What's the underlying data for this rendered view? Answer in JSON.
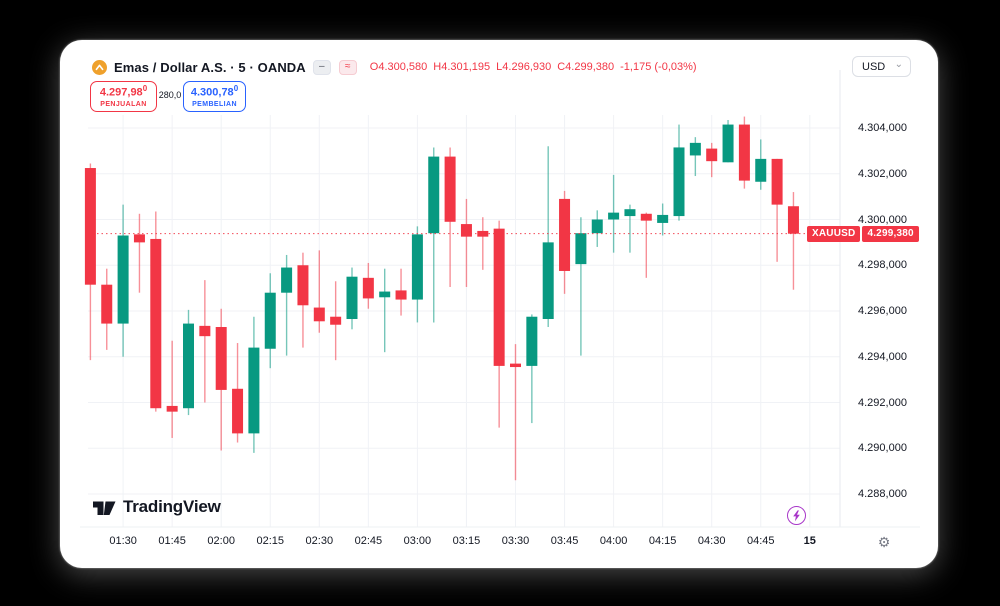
{
  "header": {
    "symbol_title": "Emas / Dollar A.S. · 5 · OANDA",
    "toggles": {
      "collapse": "–",
      "pattern": "≈"
    },
    "ohlc": {
      "o": "O4.300,580",
      "h": "H4.301,195",
      "l": "L4.296,930",
      "c": "C4.299,380",
      "change": "-1,175 (-0,03%)"
    },
    "currency": {
      "selected": "USD",
      "chevron": "⌄"
    }
  },
  "trade_panel": {
    "sell_price": "4.297,98",
    "sell_sup": "0",
    "sell_label": "PENJUALAN",
    "spread": "280,0",
    "buy_price": "4.300,78",
    "buy_sup": "0",
    "buy_label": "PEMBELIAN"
  },
  "price_tag": {
    "symbol": "XAUUSD",
    "value": "4.299,380"
  },
  "footer": {
    "brand": "TradingView"
  },
  "colors": {
    "up": "#089981",
    "down": "#F23645",
    "buy_accent": "#2962FF",
    "alert_accent": "#A837C9",
    "grid": "#f0f2f6",
    "text": "#131722"
  },
  "chart_data": {
    "type": "candlestick",
    "symbol": "XAUUSD",
    "name": "Emas / Dollar A.S.",
    "exchange": "OANDA",
    "interval_minutes": 5,
    "last_price": 4299.38,
    "ylim": [
      4287.0,
      4304.8
    ],
    "grid": true,
    "up_color": "#089981",
    "down_color": "#F23645",
    "price_axis_ticks": [
      {
        "label": "4.304,000",
        "value": 4304
      },
      {
        "label": "4.302,000",
        "value": 4302
      },
      {
        "label": "4.300,000",
        "value": 4300
      },
      {
        "label": "4.298,000",
        "value": 4298
      },
      {
        "label": "4.296,000",
        "value": 4296
      },
      {
        "label": "4.294,000",
        "value": 4294
      },
      {
        "label": "4.292,000",
        "value": 4292
      },
      {
        "label": "4.290,000",
        "value": 4290
      },
      {
        "label": "4.288,000",
        "value": 4288
      }
    ],
    "time_ticks": [
      {
        "label": "01:30"
      },
      {
        "label": "01:45"
      },
      {
        "label": "02:00"
      },
      {
        "label": "02:15"
      },
      {
        "label": "02:30"
      },
      {
        "label": "02:45"
      },
      {
        "label": "03:00"
      },
      {
        "label": "03:15"
      },
      {
        "label": "03:30"
      },
      {
        "label": "03:45"
      },
      {
        "label": "04:00"
      },
      {
        "label": "04:15"
      },
      {
        "label": "04:30"
      },
      {
        "label": "04:45"
      },
      {
        "label": "15",
        "emphasis": true
      }
    ],
    "first_tick_candle_index": 2,
    "candles_per_tick": 3,
    "candles": [
      [
        4302.25,
        4302.45,
        4293.85,
        4297.15
      ],
      [
        4297.15,
        4297.85,
        4294.3,
        4295.45
      ],
      [
        4295.45,
        4300.65,
        4294.0,
        4299.3
      ],
      [
        4299.35,
        4300.25,
        4296.8,
        4299.0
      ],
      [
        4299.15,
        4300.35,
        4291.6,
        4291.75
      ],
      [
        4291.85,
        4294.7,
        4290.45,
        4291.6
      ],
      [
        4291.75,
        4296.05,
        4291.45,
        4295.45
      ],
      [
        4295.35,
        4297.35,
        4292.0,
        4294.9
      ],
      [
        4295.3,
        4296.1,
        4289.9,
        4292.55
      ],
      [
        4292.6,
        4294.6,
        4290.25,
        4290.65
      ],
      [
        4290.65,
        4295.75,
        4289.8,
        4294.4
      ],
      [
        4294.35,
        4297.65,
        4293.5,
        4296.8
      ],
      [
        4296.8,
        4298.45,
        4294.05,
        4297.9
      ],
      [
        4298.0,
        4298.55,
        4294.4,
        4296.25
      ],
      [
        4296.15,
        4298.65,
        4295.05,
        4295.55
      ],
      [
        4295.75,
        4297.3,
        4293.85,
        4295.4
      ],
      [
        4295.65,
        4297.9,
        4295.2,
        4297.5
      ],
      [
        4297.45,
        4298.1,
        4296.1,
        4296.55
      ],
      [
        4296.6,
        4297.85,
        4294.2,
        4296.85
      ],
      [
        4296.9,
        4297.85,
        4295.8,
        4296.5
      ],
      [
        4296.5,
        4299.7,
        4295.5,
        4299.35
      ],
      [
        4299.4,
        4303.15,
        4295.5,
        4302.75
      ],
      [
        4302.75,
        4303.15,
        4297.05,
        4299.9
      ],
      [
        4299.8,
        4300.9,
        4297.05,
        4299.25
      ],
      [
        4299.5,
        4300.1,
        4297.8,
        4299.25
      ],
      [
        4299.6,
        4299.95,
        4290.9,
        4293.6
      ],
      [
        4293.7,
        4294.55,
        4288.6,
        4293.55
      ],
      [
        4293.6,
        4295.85,
        4291.1,
        4295.75
      ],
      [
        4295.65,
        4303.2,
        4295.3,
        4299.0
      ],
      [
        4300.9,
        4301.25,
        4296.75,
        4297.75
      ],
      [
        4298.05,
        4300.1,
        4294.05,
        4299.4
      ],
      [
        4299.4,
        4300.4,
        4298.8,
        4300.0
      ],
      [
        4300.0,
        4301.95,
        4298.55,
        4300.3
      ],
      [
        4300.15,
        4300.65,
        4298.55,
        4300.45
      ],
      [
        4300.25,
        4300.3,
        4297.45,
        4299.95
      ],
      [
        4299.85,
        4300.7,
        4299.3,
        4300.2
      ],
      [
        4300.15,
        4304.15,
        4299.95,
        4303.15
      ],
      [
        4302.8,
        4303.6,
        4301.9,
        4303.35
      ],
      [
        4303.1,
        4303.35,
        4301.85,
        4302.55
      ],
      [
        4302.5,
        4304.35,
        4302.5,
        4304.15
      ],
      [
        4304.15,
        4304.5,
        4301.35,
        4301.7
      ],
      [
        4301.65,
        4303.5,
        4301.3,
        4302.65
      ],
      [
        4302.65,
        4302.65,
        4298.15,
        4300.65
      ],
      [
        4300.58,
        4301.2,
        4296.93,
        4299.38
      ]
    ]
  }
}
